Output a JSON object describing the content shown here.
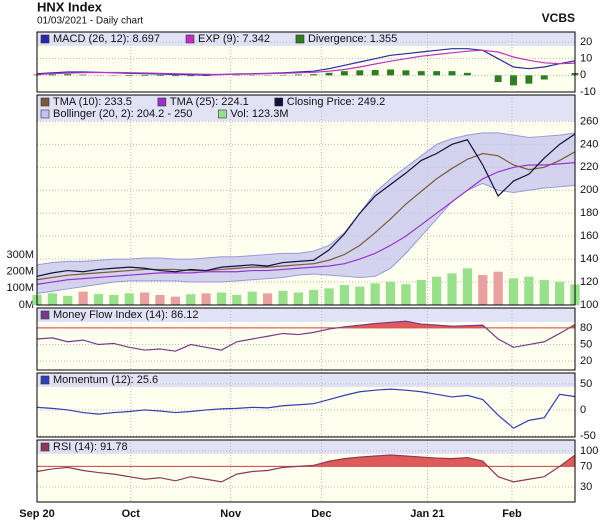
{
  "header": {
    "title": "HNX Index",
    "subtitle": "01/03/2021 - Daily chart",
    "brand": "VCBS"
  },
  "chart_data": [
    {
      "type": "line",
      "ylim": [
        -10,
        26
      ],
      "yticks": [
        20,
        10,
        0,
        -10
      ],
      "grid": true,
      "series": [
        {
          "name": "MACD (26, 12): 8.697",
          "color": "#2a2aa8",
          "style": "line",
          "values": [
            1,
            1.5,
            2,
            2,
            1.8,
            1.5,
            1.2,
            1,
            0.8,
            0.5,
            0.3,
            0.2,
            0.5,
            0.8,
            1,
            1.2,
            1.5,
            2,
            2.5,
            4,
            6,
            8,
            10,
            12,
            13,
            14,
            15,
            16,
            16,
            15,
            10,
            5,
            4,
            5,
            7,
            8.697
          ]
        },
        {
          "name": "EXP (9): 7.342",
          "color": "#c030c0",
          "style": "line",
          "values": [
            0.5,
            1,
            1.3,
            1.6,
            1.7,
            1.7,
            1.6,
            1.4,
            1.2,
            1,
            0.8,
            0.6,
            0.5,
            0.6,
            0.8,
            1,
            1.2,
            1.5,
            1.8,
            2.5,
            3.5,
            5,
            6.8,
            8.5,
            10,
            11.5,
            12.5,
            13.5,
            14.5,
            15,
            14,
            11,
            9,
            7.5,
            7,
            7.342
          ]
        },
        {
          "name": "Divergence: 1.355",
          "color": "#2e7d1e",
          "style": "bar",
          "values": [
            0.5,
            0.5,
            0.7,
            0.4,
            0.1,
            -0.2,
            -0.4,
            -0.4,
            -0.4,
            -0.5,
            -0.5,
            -0.4,
            0,
            0.2,
            0.2,
            0.2,
            0.3,
            0.5,
            0.7,
            1.5,
            2.5,
            3,
            3.2,
            3.5,
            3,
            2.5,
            2.5,
            2.5,
            1.5,
            0,
            -4,
            -6,
            -5,
            -2.5,
            0,
            1.355
          ]
        }
      ]
    },
    {
      "type": "line",
      "ylim": [
        100,
        283
      ],
      "yticks": [
        100,
        120,
        140,
        160,
        180,
        200,
        220,
        240,
        260
      ],
      "y2lim": [
        0,
        1260
      ],
      "y2ticks": [
        {
          "value": 300,
          "label": "300M"
        },
        {
          "value": 200,
          "label": "200M"
        },
        {
          "value": 100,
          "label": "100M"
        },
        {
          "value": 0,
          "label": "0M"
        }
      ],
      "grid": true,
      "series": [
        {
          "name": "TMA (10): 233.5",
          "color": "#7a5a3a",
          "style": "line",
          "values": [
            122,
            124,
            126,
            127,
            128,
            129,
            130,
            131,
            131,
            131,
            130,
            130,
            131,
            132,
            133,
            133,
            134,
            135,
            136,
            139,
            144,
            152,
            163,
            175,
            188,
            199,
            210,
            219,
            227,
            232,
            230,
            222,
            218,
            220,
            226,
            233.5
          ]
        },
        {
          "name": "TMA (25): 224.1",
          "color": "#9a33cc",
          "style": "line",
          "values": [
            118,
            120,
            122,
            123,
            124,
            125,
            126,
            127,
            128,
            128,
            128,
            129,
            129,
            129,
            130,
            130,
            131,
            132,
            133,
            134,
            136,
            140,
            145,
            152,
            160,
            170,
            180,
            190,
            200,
            210,
            216,
            220,
            222,
            222,
            223,
            224.1
          ]
        },
        {
          "name": "Closing Price: 249.2",
          "color": "#10103a",
          "style": "line",
          "values": [
            125,
            128,
            130,
            129,
            131,
            132,
            133,
            132,
            130,
            129,
            131,
            130,
            133,
            134,
            135,
            134,
            137,
            138,
            139,
            148,
            162,
            180,
            195,
            205,
            215,
            226,
            232,
            240,
            244,
            222,
            195,
            208,
            214,
            228,
            240,
            249
          ]
        },
        {
          "name": "Bollinger (20, 2): 204.2 - 250",
          "color": "#c4c4ee",
          "style": "band",
          "upper": [
            135,
            137,
            138,
            138,
            139,
            140,
            140,
            141,
            141,
            140,
            140,
            141,
            142,
            142,
            143,
            144,
            145,
            145,
            147,
            152,
            163,
            180,
            198,
            210,
            220,
            230,
            240,
            245,
            248,
            250,
            250,
            248,
            246,
            247,
            248,
            250
          ],
          "lower": [
            110,
            112,
            114,
            116,
            118,
            120,
            121,
            121,
            121,
            121,
            120,
            120,
            120,
            121,
            122,
            123,
            124,
            126,
            127,
            126,
            125,
            124,
            125,
            132,
            145,
            160,
            175,
            190,
            200,
            206,
            200,
            198,
            200,
            202,
            203,
            204.2
          ]
        },
        {
          "name": "Vol: 123.3M",
          "color": "#98e08c",
          "style": "bar",
          "axis": "y2",
          "values": [
            60,
            70,
            55,
            80,
            65,
            60,
            70,
            75,
            60,
            50,
            65,
            70,
            75,
            60,
            80,
            70,
            85,
            75,
            90,
            100,
            120,
            110,
            130,
            140,
            125,
            150,
            170,
            190,
            220,
            180,
            200,
            160,
            170,
            150,
            140,
            123.3
          ],
          "colors": [
            "#98e08c",
            "#98e08c",
            "#98e08c",
            "#e8a0a0",
            "#98e08c",
            "#98e08c",
            "#98e08c",
            "#e8a0a0",
            "#e8a0a0",
            "#e8a0a0",
            "#98e08c",
            "#e8a0a0",
            "#98e08c",
            "#98e08c",
            "#98e08c",
            "#e8a0a0",
            "#98e08c",
            "#98e08c",
            "#98e08c",
            "#98e08c",
            "#98e08c",
            "#98e08c",
            "#98e08c",
            "#98e08c",
            "#98e08c",
            "#98e08c",
            "#98e08c",
            "#98e08c",
            "#98e08c",
            "#e8a0a0",
            "#e8a0a0",
            "#98e08c",
            "#98e08c",
            "#98e08c",
            "#98e08c",
            "#98e08c"
          ]
        }
      ]
    },
    {
      "type": "line",
      "ylim": [
        4,
        116
      ],
      "yticks": [
        80,
        50,
        20
      ],
      "grid": true,
      "fill_above": 80,
      "fill_color": "#e05a5a",
      "series": [
        {
          "name": "Money Flow Index (14): 86.12",
          "color": "#7a3a8a",
          "style": "line",
          "values": [
            60,
            62,
            55,
            58,
            50,
            52,
            45,
            40,
            42,
            38,
            50,
            45,
            40,
            55,
            60,
            65,
            70,
            68,
            72,
            78,
            82,
            85,
            88,
            90,
            92,
            87,
            85,
            83,
            84,
            85,
            60,
            45,
            50,
            55,
            70,
            86.12
          ]
        }
      ]
    },
    {
      "type": "line",
      "ylim": [
        -52,
        71
      ],
      "yticks": [
        50,
        0,
        -50
      ],
      "grid": true,
      "series": [
        {
          "name": "Momentum (12): 25.6",
          "color": "#3040b0",
          "style": "line",
          "values": [
            5,
            3,
            0,
            -5,
            -8,
            -5,
            -3,
            0,
            -2,
            -5,
            -3,
            0,
            2,
            3,
            5,
            4,
            8,
            10,
            12,
            20,
            28,
            35,
            38,
            40,
            38,
            35,
            30,
            25,
            28,
            20,
            -10,
            -35,
            -20,
            -15,
            30,
            25.6
          ]
        }
      ]
    },
    {
      "type": "line",
      "ylim": [
        1,
        121
      ],
      "yticks": [
        100,
        70,
        30
      ],
      "grid": true,
      "fill_above": 70,
      "fill_color": "#e05a5a",
      "xlim": [
        0,
        35
      ],
      "xticks": [
        {
          "value": 0,
          "label": "Sep 20"
        },
        {
          "value": 6.1,
          "label": "Oct"
        },
        {
          "value": 12.6,
          "label": "Nov"
        },
        {
          "value": 18.5,
          "label": "Dec"
        },
        {
          "value": 25.4,
          "label": "Jan 21"
        },
        {
          "value": 30.9,
          "label": "Feb"
        }
      ],
      "series": [
        {
          "name": "RSI (14): 91.78",
          "color": "#8a3a5a",
          "style": "line",
          "values": [
            60,
            65,
            68,
            62,
            58,
            55,
            50,
            45,
            48,
            42,
            50,
            45,
            40,
            55,
            60,
            62,
            68,
            70,
            72,
            80,
            85,
            88,
            90,
            92,
            90,
            88,
            86,
            85,
            87,
            80,
            50,
            40,
            45,
            50,
            70,
            91.78
          ]
        }
      ]
    }
  ]
}
